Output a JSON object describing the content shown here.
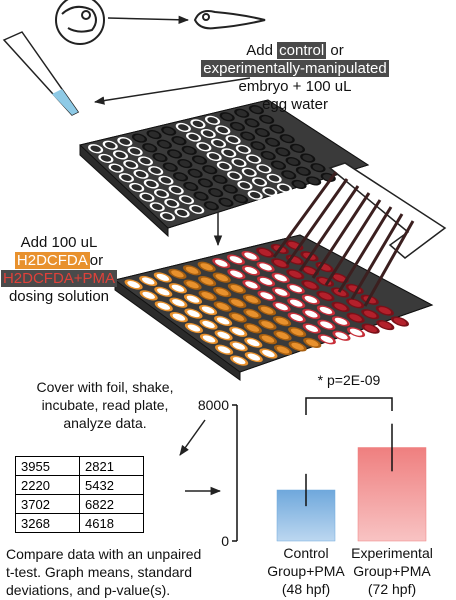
{
  "step1": {
    "add": "Add",
    "control": "control",
    "or": "or",
    "experimental": "experimentally-manipulated",
    "line3": "embryo + 100 uL",
    "line4": "egg water"
  },
  "step2": {
    "line1": "Add 100 uL",
    "h2dcfda": "H2DCFDA",
    "or": "or",
    "h2dcfda_pma": "H2DCFDA+PMA",
    "line3": "dosing solution"
  },
  "step3": {
    "lines": [
      "Cover with foil, shake,",
      "incubate, read plate,",
      "analyze data."
    ]
  },
  "table": {
    "rows": [
      [
        3955,
        2821
      ],
      [
        2220,
        5432
      ],
      [
        3702,
        6822
      ],
      [
        3268,
        4618
      ]
    ]
  },
  "step4": {
    "lines": [
      "Compare data with an unpaired",
      "t-test. Graph means, standard",
      "deviations, and p-value(s)."
    ]
  },
  "chart_data": {
    "type": "bar",
    "categories": [
      [
        "Control",
        "Group+PMA",
        "(48 hpf)"
      ],
      [
        "Experimental",
        "Group+PMA",
        "(72 hpf)"
      ]
    ],
    "values": [
      3000,
      5500
    ],
    "errors": [
      950,
      1400
    ],
    "colors": [
      "#6fa8dc",
      "#ef7f7f"
    ],
    "ylim": [
      0,
      8000
    ],
    "yticks": [
      0,
      8000
    ],
    "annotation": "* p=2E-09"
  }
}
